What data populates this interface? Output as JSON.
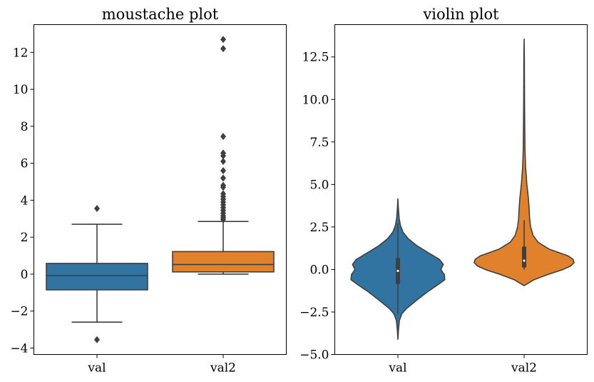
{
  "chart_data": [
    {
      "type": "box",
      "title": "moustache plot",
      "xlabel": "",
      "ylabel": "",
      "categories": [
        "val",
        "val2"
      ],
      "ylim": [
        -4.35,
        13.5
      ],
      "yticks": [
        -4,
        -2,
        0,
        2,
        4,
        6,
        8,
        10,
        12
      ],
      "ytick_labels": [
        "−4",
        "−2",
        "0",
        "2",
        "4",
        "6",
        "8",
        "10",
        "12"
      ],
      "grid": false,
      "colors": [
        "#3274a1",
        "#e1812c"
      ],
      "series": [
        {
          "category": "val",
          "whisker_low": -2.6,
          "q1": -0.85,
          "median": -0.08,
          "q3": 0.58,
          "whisker_high": 2.7,
          "outliers": [
            3.55,
            -3.55
          ]
        },
        {
          "category": "val2",
          "whisker_low": 0.0,
          "q1": 0.12,
          "median": 0.52,
          "q3": 1.22,
          "whisker_high": 2.85,
          "outliers": [
            2.95,
            3.05,
            3.15,
            3.3,
            3.45,
            3.6,
            3.75,
            3.9,
            4.05,
            4.2,
            4.35,
            4.7,
            4.8,
            5.2,
            5.6,
            6.1,
            6.4,
            6.55,
            7.45,
            12.2,
            12.7
          ]
        }
      ]
    },
    {
      "type": "violin",
      "title": "violin plot",
      "xlabel": "",
      "ylabel": "",
      "categories": [
        "val",
        "val2"
      ],
      "ylim": [
        -5.0,
        14.4
      ],
      "yticks": [
        -5.0,
        -2.5,
        0.0,
        2.5,
        5.0,
        7.5,
        10.0,
        12.5
      ],
      "ytick_labels": [
        "−5.0",
        "−2.5",
        "0.0",
        "2.5",
        "5.0",
        "7.5",
        "10.0",
        "12.5"
      ],
      "grid": false,
      "colors": [
        "#3274a1",
        "#e1812c"
      ],
      "series": [
        {
          "category": "val",
          "median": -0.08,
          "q1": -0.85,
          "q3": 0.68,
          "whisker_low": -2.6,
          "whisker_high": 2.7,
          "density": [
            [
              -4.1,
              0.0
            ],
            [
              -3.6,
              0.01
            ],
            [
              -3.0,
              0.03
            ],
            [
              -2.6,
              0.08
            ],
            [
              -2.3,
              0.17
            ],
            [
              -1.8,
              0.38
            ],
            [
              -1.3,
              0.6
            ],
            [
              -0.9,
              0.8
            ],
            [
              -0.6,
              0.94
            ],
            [
              -0.3,
              0.93
            ],
            [
              0.0,
              0.86
            ],
            [
              0.3,
              0.91
            ],
            [
              0.6,
              0.83
            ],
            [
              1.0,
              0.6
            ],
            [
              1.4,
              0.38
            ],
            [
              1.8,
              0.21
            ],
            [
              2.2,
              0.1
            ],
            [
              2.6,
              0.05
            ],
            [
              3.0,
              0.025
            ],
            [
              3.6,
              0.01
            ],
            [
              4.15,
              0.0
            ]
          ]
        },
        {
          "category": "val2",
          "median": 0.52,
          "q1": 0.12,
          "q3": 1.35,
          "whisker_low": 0.0,
          "whisker_high": 2.9,
          "density": [
            [
              -0.95,
              0.0
            ],
            [
              -0.6,
              0.2
            ],
            [
              -0.3,
              0.47
            ],
            [
              0.0,
              0.78
            ],
            [
              0.2,
              0.93
            ],
            [
              0.4,
              1.0
            ],
            [
              0.6,
              0.98
            ],
            [
              0.8,
              0.88
            ],
            [
              1.2,
              0.5
            ],
            [
              1.6,
              0.28
            ],
            [
              2.0,
              0.18
            ],
            [
              2.5,
              0.13
            ],
            [
              3.0,
              0.11
            ],
            [
              3.6,
              0.1
            ],
            [
              4.2,
              0.085
            ],
            [
              5.0,
              0.055
            ],
            [
              6.0,
              0.03
            ],
            [
              7.0,
              0.018
            ],
            [
              8.5,
              0.012
            ],
            [
              10.0,
              0.008
            ],
            [
              11.5,
              0.006
            ],
            [
              12.5,
              0.005
            ],
            [
              13.55,
              0.0
            ]
          ]
        }
      ]
    }
  ]
}
